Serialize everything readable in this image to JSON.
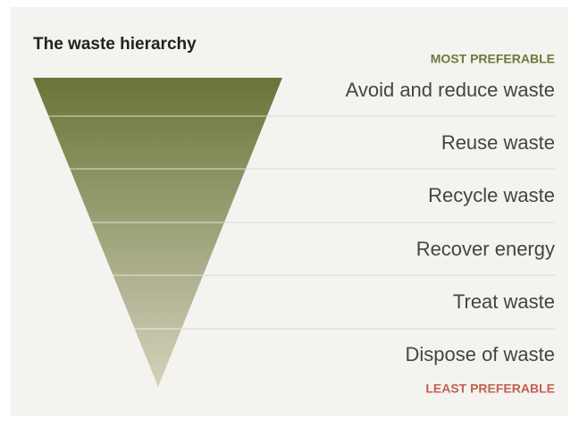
{
  "title": "The waste hierarchy",
  "top_label": "MOST PREFERABLE",
  "bottom_label": "LEAST PREFERABLE",
  "levels": [
    "Avoid and reduce waste",
    "Reuse waste",
    "Recycle waste",
    "Recover energy",
    "Treat waste",
    "Dispose of waste"
  ]
}
